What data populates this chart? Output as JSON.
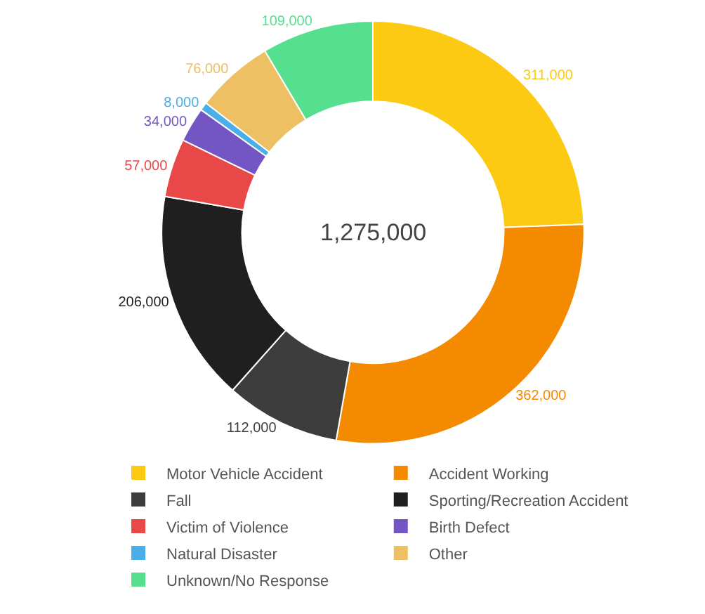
{
  "chart_data": {
    "type": "donut",
    "categories": [
      "Motor Vehicle Accident",
      "Accident Working",
      "Fall",
      "Sporting/Recreation Accident",
      "Victim of Violence",
      "Birth Defect",
      "Natural Disaster",
      "Other",
      "Unknown/No Response"
    ],
    "values": [
      311000,
      362000,
      112000,
      206000,
      57000,
      34000,
      8000,
      76000,
      109000
    ],
    "colors": [
      "#fcc913",
      "#f38a00",
      "#3d3d3d",
      "#1f1f1f",
      "#e84848",
      "#7356c4",
      "#4aaee8",
      "#ecc063",
      "#56df8e"
    ],
    "value_labels": [
      "311,000",
      "362,000",
      "112,000",
      "206,000",
      "57,000",
      "34,000",
      "8,000",
      "76,000",
      "109,000"
    ],
    "annotations": [
      "1,275,000"
    ],
    "legend": "bottom"
  }
}
